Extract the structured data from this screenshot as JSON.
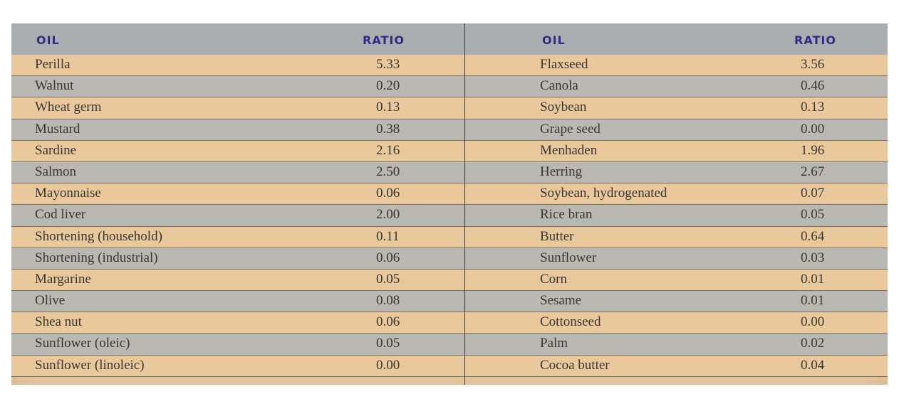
{
  "left_table": {
    "header": {
      "oil": "OIL",
      "ratio": "RATIO"
    },
    "rows": [
      {
        "oil": "Perilla",
        "ratio": "5.33"
      },
      {
        "oil": "Walnut",
        "ratio": "0.20"
      },
      {
        "oil": "Wheat germ",
        "ratio": "0.13"
      },
      {
        "oil": "Mustard",
        "ratio": "0.38"
      },
      {
        "oil": "Sardine",
        "ratio": "2.16"
      },
      {
        "oil": "Salmon",
        "ratio": "2.50"
      },
      {
        "oil": "Mayonnaise",
        "ratio": "0.06"
      },
      {
        "oil": "Cod liver",
        "ratio": "2.00"
      },
      {
        "oil": "Shortening (household)",
        "ratio": "0.11"
      },
      {
        "oil": "Shortening (industrial)",
        "ratio": "0.06"
      },
      {
        "oil": "Margarine",
        "ratio": "0.05"
      },
      {
        "oil": "Olive",
        "ratio": "0.08"
      },
      {
        "oil": "Shea nut",
        "ratio": "0.06"
      },
      {
        "oil": "Sunflower (oleic)",
        "ratio": "0.05"
      },
      {
        "oil": "Sunflower (linoleic)",
        "ratio": "0.00"
      }
    ]
  },
  "right_table": {
    "header": {
      "oil": "OIL",
      "ratio": "RATIO"
    },
    "rows": [
      {
        "oil": "Flaxseed",
        "ratio": "3.56"
      },
      {
        "oil": "Canola",
        "ratio": "0.46"
      },
      {
        "oil": "Soybean",
        "ratio": "0.13"
      },
      {
        "oil": "Grape seed",
        "ratio": "0.00"
      },
      {
        "oil": "Menhaden",
        "ratio": "1.96"
      },
      {
        "oil": "Herring",
        "ratio": "2.67"
      },
      {
        "oil": "Soybean, hydrogenated",
        "ratio": "0.07"
      },
      {
        "oil": "Rice bran",
        "ratio": "0.05"
      },
      {
        "oil": "Butter",
        "ratio": "0.64"
      },
      {
        "oil": "Sunflower",
        "ratio": "0.03"
      },
      {
        "oil": "Corn",
        "ratio": "0.01"
      },
      {
        "oil": "Sesame",
        "ratio": "0.01"
      },
      {
        "oil": "Cottonseed",
        "ratio": "0.00"
      },
      {
        "oil": "Palm",
        "ratio": "0.02"
      },
      {
        "oil": "Cocoa butter",
        "ratio": "0.04"
      }
    ]
  },
  "colors": {
    "header_text": "#2d2e83",
    "row_tan": "#e9c99c",
    "row_gray": "#b9b8b2",
    "body_text": "#3a3632"
  }
}
